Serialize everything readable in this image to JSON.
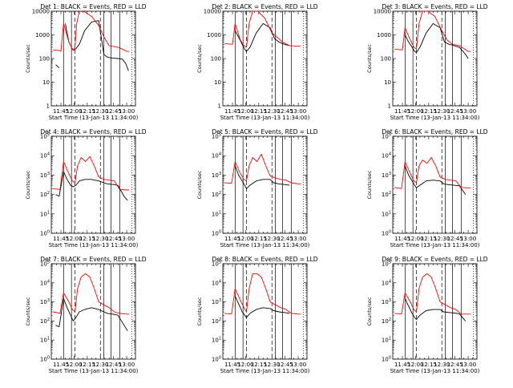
{
  "page": {
    "start_time_label": "Start Time (13-Jan-13 11:34:00)",
    "ylabel": "Counts/sec",
    "colors": {
      "events": "#000000",
      "lld": "#ff0000",
      "frame": "#000000"
    }
  },
  "chart_data": [
    {
      "type": "line",
      "title": "Det 1: BLACK = Events, RED = LLD",
      "xlabel": "Start Time (13-Jan-13 11:34:00)",
      "ylabel": "Counts/sec",
      "y_scale": "log",
      "ylim": [
        1,
        10000
      ],
      "ytick_labels": [
        "1",
        "10",
        "100",
        "1000",
        "10000"
      ],
      "xtick_labels": [
        "11:45",
        "12:00",
        "12:15",
        "12:30",
        "12:45",
        "13:00"
      ],
      "series": [
        {
          "name": "Events",
          "color": "#000000",
          "x": [
            "11:39",
            "11:43",
            "11:46",
            "11:50",
            "11:54",
            "11:57",
            "11:59",
            "12:02",
            "12:06",
            "12:12",
            "12:20",
            "12:28",
            "12:34",
            "12:37",
            "12:40",
            "12:44",
            "12:50",
            "12:55",
            "12:59",
            "13:02"
          ],
          "y": [
            55,
            40,
            null,
            3000,
            500,
            300,
            220,
            260,
            400,
            1500,
            3500,
            4000,
            150,
            120,
            110,
            105,
            100,
            95,
            60,
            30
          ]
        },
        {
          "name": "LLD",
          "color": "#ff0000",
          "x": [
            "11:36",
            "11:43",
            "11:45",
            "11:48",
            "11:54",
            "11:57",
            "11:59",
            "12:01",
            "12:03",
            "12:06",
            "12:12",
            "12:20",
            "12:28",
            "12:35",
            "12:40",
            "12:45",
            "12:50",
            "12:55",
            "13:00",
            "13:03"
          ],
          "y": [
            230,
            220,
            200,
            3000,
            500,
            300,
            220,
            300,
            3000,
            10000,
            9500,
            6000,
            2500,
            700,
            350,
            320,
            300,
            250,
            200,
            200
          ]
        }
      ]
    },
    {
      "type": "line",
      "title": "Det 2: BLACK = Events, RED = LLD",
      "xlabel": "Start Time (13-Jan-13 11:34:00)",
      "ylabel": "Counts/sec",
      "y_scale": "log",
      "ylim": [
        1,
        10000
      ],
      "ytick_labels": [
        "1",
        "10",
        "100",
        "1000",
        "10000"
      ],
      "xtick_labels": [
        "11:45",
        "12:00",
        "12:15",
        "12:30",
        "12:45",
        "13:00"
      ],
      "series": [
        {
          "name": "Events",
          "color": "#000000",
          "x": [
            "11:48",
            "11:52",
            "11:56",
            "11:59",
            "12:01",
            "12:05",
            "12:12",
            "12:20",
            "12:28",
            "12:33",
            "12:38",
            "12:44",
            "12:50"
          ],
          "y": [
            1500,
            800,
            400,
            250,
            200,
            300,
            1200,
            3000,
            2000,
            700,
            500,
            400,
            350
          ]
        },
        {
          "name": "LLD",
          "color": "#ff0000",
          "x": [
            "11:36",
            "11:45",
            "11:48",
            "11:54",
            "11:58",
            "12:01",
            "12:04",
            "12:08",
            "12:14",
            "12:22",
            "12:30",
            "12:36",
            "12:42",
            "12:50",
            "13:00",
            "13:03"
          ],
          "y": [
            420,
            400,
            3000,
            600,
            350,
            300,
            3000,
            10000,
            10000,
            5000,
            1200,
            800,
            500,
            350,
            330,
            330
          ]
        }
      ]
    },
    {
      "type": "line",
      "title": "Det 3: BLACK = Events, RED = LLD",
      "xlabel": "Start Time (13-Jan-13 11:34:00)",
      "ylabel": "Counts/sec",
      "y_scale": "log",
      "ylim": [
        1,
        10000
      ],
      "ytick_labels": [
        "1",
        "10",
        "100",
        "1000",
        "10000"
      ],
      "xtick_labels": [
        "11:45",
        "12:00",
        "12:15",
        "12:30",
        "12:45",
        "13:00"
      ],
      "series": [
        {
          "name": "Events",
          "color": "#000000",
          "x": [
            "11:48",
            "11:52",
            "11:56",
            "11:59",
            "12:01",
            "12:05",
            "12:12",
            "12:20",
            "12:28",
            "12:33",
            "12:38",
            "12:44",
            "12:50",
            "12:57",
            "13:00"
          ],
          "y": [
            1000,
            500,
            300,
            200,
            180,
            300,
            1200,
            3000,
            2000,
            500,
            400,
            350,
            300,
            150,
            100
          ]
        },
        {
          "name": "LLD",
          "color": "#ff0000",
          "x": [
            "11:36",
            "11:45",
            "11:48",
            "11:54",
            "11:58",
            "12:01",
            "12:04",
            "12:08",
            "12:14",
            "12:22",
            "12:30",
            "12:36",
            "12:42",
            "12:50",
            "13:00",
            "13:03"
          ],
          "y": [
            250,
            230,
            2000,
            600,
            300,
            250,
            3000,
            10000,
            10000,
            6000,
            1500,
            600,
            400,
            350,
            200,
            200
          ]
        }
      ]
    },
    {
      "type": "line",
      "title": "Det 4: BLACK = Events, RED = LLD",
      "xlabel": "Start Time (13-Jan-13 11:34:00)",
      "ylabel": "Counts/sec",
      "y_scale": "log",
      "ylim": [
        1,
        100000
      ],
      "ytick_labels": [
        "10^0",
        "10^1",
        "10^2",
        "10^3",
        "10^4",
        "10^5"
      ],
      "xtick_labels": [
        "11:45",
        "12:00",
        "12:15",
        "12:30",
        "12:45",
        "13:00"
      ],
      "series": [
        {
          "name": "Events",
          "color": "#000000",
          "x": [
            "11:39",
            "11:43",
            "11:48",
            "11:52",
            "11:56",
            "11:59",
            "12:02",
            "12:06",
            "12:12",
            "12:20",
            "12:28",
            "12:34",
            "12:38",
            "12:44",
            "12:50",
            "12:57",
            "13:01"
          ],
          "y": [
            100,
            80,
            1500,
            600,
            300,
            250,
            300,
            500,
            600,
            600,
            500,
            400,
            350,
            330,
            300,
            80,
            50
          ]
        },
        {
          "name": "LLD",
          "color": "#ff0000",
          "x": [
            "11:36",
            "11:44",
            "11:48",
            "11:54",
            "11:58",
            "12:01",
            "12:04",
            "12:08",
            "12:13",
            "12:18",
            "12:23",
            "12:28",
            "12:34",
            "12:40",
            "12:46",
            "12:52",
            "13:00",
            "13:03"
          ],
          "y": [
            200,
            180,
            5000,
            1200,
            500,
            400,
            3000,
            8000,
            5000,
            9000,
            3000,
            800,
            600,
            550,
            500,
            180,
            170,
            170
          ]
        }
      ]
    },
    {
      "type": "line",
      "title": "Det 5: BLACK = Events, RED = LLD",
      "xlabel": "Start Time (13-Jan-13 11:34:00)",
      "ylabel": "Counts/sec",
      "y_scale": "log",
      "ylim": [
        1,
        100000
      ],
      "ytick_labels": [
        "10^0",
        "10^1",
        "10^2",
        "10^3",
        "10^4",
        "10^5"
      ],
      "xtick_labels": [
        "11:45",
        "12:00",
        "12:15",
        "12:30",
        "12:45",
        "13:00"
      ],
      "series": [
        {
          "name": "Events",
          "color": "#000000",
          "x": [
            "11:48",
            "11:52",
            "11:56",
            "11:59",
            "12:01",
            "12:05",
            "12:12",
            "12:20",
            "12:28",
            "12:32",
            "12:38",
            "12:44",
            "12:50"
          ],
          "y": [
            3000,
            1000,
            500,
            300,
            200,
            300,
            500,
            600,
            600,
            400,
            350,
            330,
            300
          ]
        },
        {
          "name": "LLD",
          "color": "#ff0000",
          "x": [
            "11:36",
            "11:44",
            "11:48",
            "11:54",
            "11:58",
            "12:01",
            "12:04",
            "12:08",
            "12:13",
            "12:18",
            "12:23",
            "12:28",
            "12:34",
            "12:40",
            "12:46",
            "12:52",
            "13:00",
            "13:03"
          ],
          "y": [
            400,
            380,
            5000,
            1200,
            600,
            500,
            3000,
            8000,
            5000,
            12000,
            3000,
            900,
            700,
            600,
            550,
            400,
            350,
            350
          ]
        }
      ]
    },
    {
      "type": "line",
      "title": "Det 6: BLACK = Events, RED = LLD",
      "xlabel": "Start Time (13-Jan-13 11:34:00)",
      "ylabel": "Counts/sec",
      "y_scale": "log",
      "ylim": [
        1,
        100000
      ],
      "ytick_labels": [
        "10^0",
        "10^1",
        "10^2",
        "10^3",
        "10^4",
        "10^5"
      ],
      "xtick_labels": [
        "11:45",
        "12:00",
        "12:15",
        "12:30",
        "12:45",
        "13:00"
      ],
      "series": [
        {
          "name": "Events",
          "color": "#000000",
          "x": [
            "11:48",
            "11:52",
            "11:56",
            "11:59",
            "12:01",
            "12:05",
            "12:12",
            "12:20",
            "12:28",
            "12:32",
            "12:38",
            "12:44",
            "12:50",
            "12:57"
          ],
          "y": [
            3000,
            1000,
            500,
            300,
            220,
            300,
            500,
            550,
            500,
            350,
            320,
            300,
            280,
            100
          ]
        },
        {
          "name": "LLD",
          "color": "#ff0000",
          "x": [
            "11:36",
            "11:44",
            "11:48",
            "11:54",
            "11:58",
            "12:01",
            "12:04",
            "12:08",
            "12:13",
            "12:18",
            "12:23",
            "12:28",
            "12:34",
            "12:40",
            "12:46",
            "12:52",
            "13:00",
            "13:03"
          ],
          "y": [
            230,
            200,
            5000,
            1200,
            500,
            400,
            3000,
            6000,
            4000,
            8000,
            3000,
            800,
            600,
            550,
            500,
            230,
            220,
            220
          ]
        }
      ]
    },
    {
      "type": "line",
      "title": "Det 7: BLACK = Events, RED = LLD",
      "xlabel": "Start Time (13-Jan-13 11:34:00)",
      "ylabel": "Counts/sec",
      "y_scale": "log",
      "ylim": [
        1,
        100000
      ],
      "ytick_labels": [
        "10^0",
        "10^1",
        "10^2",
        "10^3",
        "10^4",
        "10^5"
      ],
      "xtick_labels": [
        "11:45",
        "12:00",
        "12:15",
        "12:30",
        "12:45",
        "13:00"
      ],
      "series": [
        {
          "name": "Events",
          "color": "#000000",
          "x": [
            "11:39",
            "11:43",
            "11:48",
            "11:52",
            "11:56",
            "11:59",
            "12:02",
            "12:06",
            "12:12",
            "12:20",
            "12:28",
            "12:34",
            "12:38",
            "12:44",
            "12:50",
            "12:57",
            "13:01"
          ],
          "y": [
            60,
            50,
            1500,
            500,
            200,
            100,
            150,
            300,
            400,
            500,
            400,
            300,
            250,
            230,
            200,
            60,
            30
          ]
        },
        {
          "name": "LLD",
          "color": "#ff0000",
          "x": [
            "11:36",
            "11:44",
            "11:48",
            "11:54",
            "11:58",
            "12:01",
            "12:04",
            "12:08",
            "12:13",
            "12:18",
            "12:23",
            "12:28",
            "12:34",
            "12:40",
            "12:46",
            "12:52",
            "13:00",
            "13:03"
          ],
          "y": [
            300,
            250,
            3000,
            1000,
            400,
            300,
            5000,
            20000,
            30000,
            20000,
            5000,
            1000,
            700,
            500,
            300,
            250,
            230,
            230
          ]
        }
      ]
    },
    {
      "type": "line",
      "title": "Det 8: BLACK = Events, RED = LLD",
      "xlabel": "Start Time (13-Jan-13 11:34:00)",
      "ylabel": "Counts/sec",
      "y_scale": "log",
      "ylim": [
        1,
        100000
      ],
      "ytick_labels": [
        "10^0",
        "10^1",
        "10^2",
        "10^3",
        "10^4",
        "10^5"
      ],
      "xtick_labels": [
        "11:45",
        "12:00",
        "12:15",
        "12:30",
        "12:45",
        "13:00"
      ],
      "series": [
        {
          "name": "Events",
          "color": "#000000",
          "x": [
            "11:48",
            "11:52",
            "11:56",
            "11:59",
            "12:01",
            "12:05",
            "12:12",
            "12:20",
            "12:28",
            "12:32",
            "12:38",
            "12:44",
            "12:50"
          ],
          "y": [
            2000,
            800,
            300,
            200,
            150,
            250,
            400,
            500,
            450,
            350,
            300,
            280,
            250
          ]
        },
        {
          "name": "LLD",
          "color": "#ff0000",
          "x": [
            "11:36",
            "11:44",
            "11:48",
            "11:54",
            "11:58",
            "12:01",
            "12:04",
            "12:08",
            "12:13",
            "12:18",
            "12:23",
            "12:28",
            "12:34",
            "12:40",
            "12:46",
            "12:52",
            "13:00",
            "13:03"
          ],
          "y": [
            250,
            230,
            5000,
            1200,
            500,
            300,
            5000,
            30000,
            30000,
            20000,
            5000,
            1000,
            700,
            500,
            400,
            250,
            230,
            230
          ]
        }
      ]
    },
    {
      "type": "line",
      "title": "Det 9: BLACK = Events, RED = LLD",
      "xlabel": "Start Time (13-Jan-13 11:34:00)",
      "ylabel": "Counts/sec",
      "y_scale": "log",
      "ylim": [
        1,
        100000
      ],
      "ytick_labels": [
        "10^0",
        "10^1",
        "10^2",
        "10^3",
        "10^4",
        "10^5"
      ],
      "xtick_labels": [
        "11:45",
        "12:00",
        "12:15",
        "12:30",
        "12:45",
        "13:00"
      ],
      "series": [
        {
          "name": "Events",
          "color": "#000000",
          "x": [
            "11:48",
            "11:52",
            "11:56",
            "11:59",
            "12:01",
            "12:05",
            "12:12",
            "12:20",
            "12:28",
            "12:32",
            "12:38",
            "12:44",
            "12:50",
            "12:57"
          ],
          "y": [
            1500,
            600,
            250,
            150,
            120,
            200,
            350,
            400,
            400,
            300,
            280,
            260,
            240,
            100
          ]
        },
        {
          "name": "LLD",
          "color": "#ff0000",
          "x": [
            "11:36",
            "11:44",
            "11:48",
            "11:54",
            "11:58",
            "12:01",
            "12:04",
            "12:08",
            "12:13",
            "12:18",
            "12:23",
            "12:28",
            "12:34",
            "12:40",
            "12:46",
            "12:52",
            "13:00",
            "13:03"
          ],
          "y": [
            250,
            230,
            3000,
            1000,
            400,
            300,
            5000,
            20000,
            30000,
            20000,
            5000,
            1000,
            700,
            500,
            400,
            230,
            230,
            230
          ]
        }
      ]
    }
  ]
}
